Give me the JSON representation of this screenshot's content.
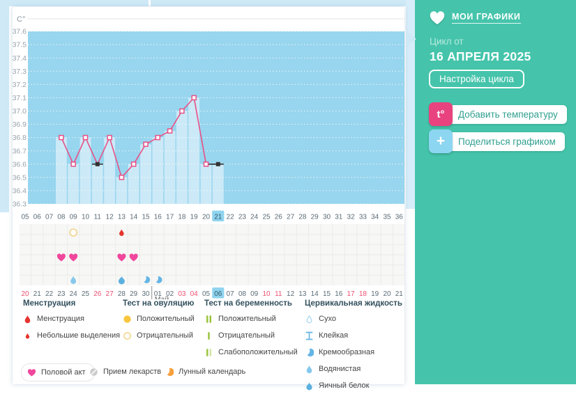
{
  "sidebar": {
    "title": "МОИ ГРАФИКИ",
    "cycle_label": "Цикл от",
    "cycle_date": "16 АПРЕЛЯ 2025",
    "settings_button": "Настройка цикла",
    "add_temp_button": "Добавить температуру",
    "add_temp_icon": "t°",
    "share_button": "Поделиться графиком",
    "share_icon": "+",
    "accent_color": "#45c4ab"
  },
  "chart_data": {
    "type": "line",
    "ylabel": "C°",
    "ymin": 36.3,
    "ymax": 37.6,
    "step": 0.1,
    "yticks": [
      "37.6",
      "37.5",
      "37.4",
      "37.3",
      "37.2",
      "37.1",
      "37.0",
      "36.9",
      "36.8",
      "36.7",
      "36.6",
      "36.5",
      "36.4",
      "36.3"
    ],
    "days": {
      "start": 5,
      "end": 36,
      "highlight": 21
    },
    "series": [
      {
        "name": "basal-temperature",
        "points": [
          {
            "day": 8,
            "temp": 36.8
          },
          {
            "day": 9,
            "temp": 36.6
          },
          {
            "day": 10,
            "temp": 36.8
          },
          {
            "day": 11,
            "temp": 36.6,
            "black": true
          },
          {
            "day": 12,
            "temp": 36.8
          },
          {
            "day": 13,
            "temp": 36.5
          },
          {
            "day": 14,
            "temp": 36.6
          },
          {
            "day": 15,
            "temp": 36.75
          },
          {
            "day": 16,
            "temp": 36.8
          },
          {
            "day": 17,
            "temp": 36.85
          },
          {
            "day": 18,
            "temp": 37.0
          },
          {
            "day": 19,
            "temp": 37.1
          },
          {
            "day": 20,
            "temp": 36.6
          },
          {
            "day": 21,
            "temp": 36.6,
            "black": true
          }
        ]
      }
    ],
    "line_color": "#e85085",
    "black_marker_color": "#333333",
    "plot_bg": "#98d5ee",
    "bar_color": "#cbe9f7",
    "events": {
      "ovulation_test_negative": [
        9
      ],
      "spotting": [
        13
      ],
      "intercourse": [
        8,
        9,
        13,
        14
      ],
      "fluid_watery": [
        9
      ],
      "fluid_eggwhite": [
        13
      ],
      "fluid_creamy": [
        15,
        16
      ]
    },
    "dates": {
      "month_label": "Май",
      "month_start_index": 11,
      "labels": [
        {
          "t": "20",
          "red": true
        },
        {
          "t": "21"
        },
        {
          "t": "22"
        },
        {
          "t": "23"
        },
        {
          "t": "24"
        },
        {
          "t": "25"
        },
        {
          "t": "26",
          "red": true
        },
        {
          "t": "27",
          "red": true
        },
        {
          "t": "28"
        },
        {
          "t": "29"
        },
        {
          "t": "30"
        },
        {
          "t": "01"
        },
        {
          "t": "02"
        },
        {
          "t": "03",
          "red": true
        },
        {
          "t": "04",
          "red": true
        },
        {
          "t": "05"
        },
        {
          "t": "06",
          "today": true
        },
        {
          "t": "07"
        },
        {
          "t": "08"
        },
        {
          "t": "09"
        },
        {
          "t": "10",
          "red": true
        },
        {
          "t": "11",
          "red": true
        },
        {
          "t": "12"
        },
        {
          "t": "13"
        },
        {
          "t": "14"
        },
        {
          "t": "15"
        },
        {
          "t": "16"
        },
        {
          "t": "17",
          "red": true
        },
        {
          "t": "18",
          "red": true
        },
        {
          "t": "19"
        },
        {
          "t": "20"
        },
        {
          "t": "21"
        }
      ]
    }
  },
  "legend": {
    "sections": [
      {
        "title": "Менструация",
        "items": [
          {
            "icon": "drop-red-large",
            "label": "Менструация"
          },
          {
            "icon": "drop-red-small",
            "label": "Небольшие выделения"
          }
        ]
      },
      {
        "title": "Тест на овуляцию",
        "items": [
          {
            "icon": "circle-yellow-filled",
            "label": "Положительный"
          },
          {
            "icon": "circle-yellow-outline",
            "label": "Отрицательный"
          }
        ]
      },
      {
        "title": "Тест на беременность",
        "items": [
          {
            "icon": "bars-green-two",
            "label": "Положительный"
          },
          {
            "icon": "bars-green-one",
            "label": "Отрицательный"
          },
          {
            "icon": "bars-green-weak",
            "label": "Слабоположительный"
          }
        ]
      },
      {
        "title": "Цервикальная жидкость",
        "items": [
          {
            "icon": "drop-outline",
            "label": "Сухо"
          },
          {
            "icon": "ibeam-blue",
            "label": "Клейкая"
          },
          {
            "icon": "crescent-blue",
            "label": "Кремообразная"
          },
          {
            "icon": "drop-blue-light",
            "label": "Водянистая"
          },
          {
            "icon": "circle-blue-filled",
            "label": "Яичный белок"
          }
        ]
      }
    ],
    "footer": [
      {
        "icon": "heart-pink",
        "label": "Половой акт",
        "boxed": true
      },
      {
        "icon": "pill-gray",
        "label": "Прием лекарств"
      },
      {
        "icon": "moon-orange",
        "label": "Лунный календарь"
      }
    ]
  }
}
